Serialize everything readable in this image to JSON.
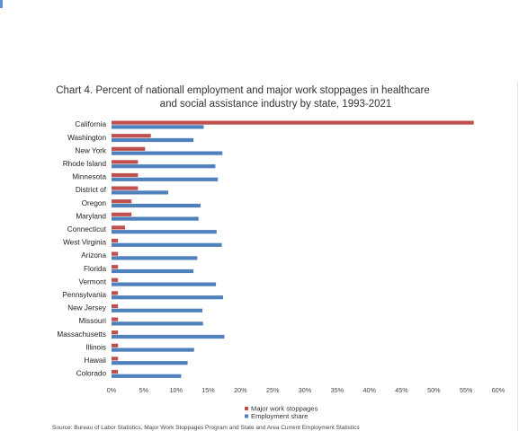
{
  "chart_data": {
    "type": "bar",
    "orientation": "horizontal",
    "title_line1": "Chart 4. Percent of nationall employment and major work stoppages in healthcare",
    "title_line2": "and social assistance industry by state, 1993-2021",
    "categories": [
      "California",
      "Washington",
      "New York",
      "Rhode Island",
      "Minnesota",
      "District of",
      "Oregon",
      "Maryland",
      "Connecticut",
      "West Virginia",
      "Arizona",
      "Florida",
      "Vermont",
      "Pennsylvania",
      "New Jersey",
      "Missouri",
      "Massachusetts",
      "Illinois",
      "Hawaii",
      "Colorado"
    ],
    "series": [
      {
        "name": "Major work stoppages",
        "color": "#c0504d",
        "values": [
          56.2,
          6.1,
          5.2,
          4.1,
          4.1,
          4.1,
          3.1,
          3.1,
          2.1,
          1.0,
          1.0,
          1.0,
          1.0,
          1.0,
          1.0,
          1.0,
          1.0,
          1.0,
          1.0,
          1.0
        ]
      },
      {
        "name": "Employment share",
        "color": "#4f81bd",
        "values": [
          14.3,
          12.7,
          17.2,
          16.1,
          16.5,
          8.8,
          13.8,
          13.5,
          16.3,
          17.1,
          13.3,
          12.7,
          16.2,
          17.3,
          14.1,
          14.2,
          17.5,
          12.8,
          11.8,
          10.8
        ]
      }
    ],
    "xlim": [
      0,
      60
    ],
    "ticks": [
      0,
      5,
      10,
      15,
      20,
      25,
      30,
      35,
      40,
      45,
      50,
      55,
      60
    ],
    "tick_format": "%",
    "grid": false,
    "legend_placement": "bottom-center"
  },
  "source_text": "Source: Bureau of Labor Statistics, Major Work Stoppages Program and State and Area Current Employment Statistics"
}
